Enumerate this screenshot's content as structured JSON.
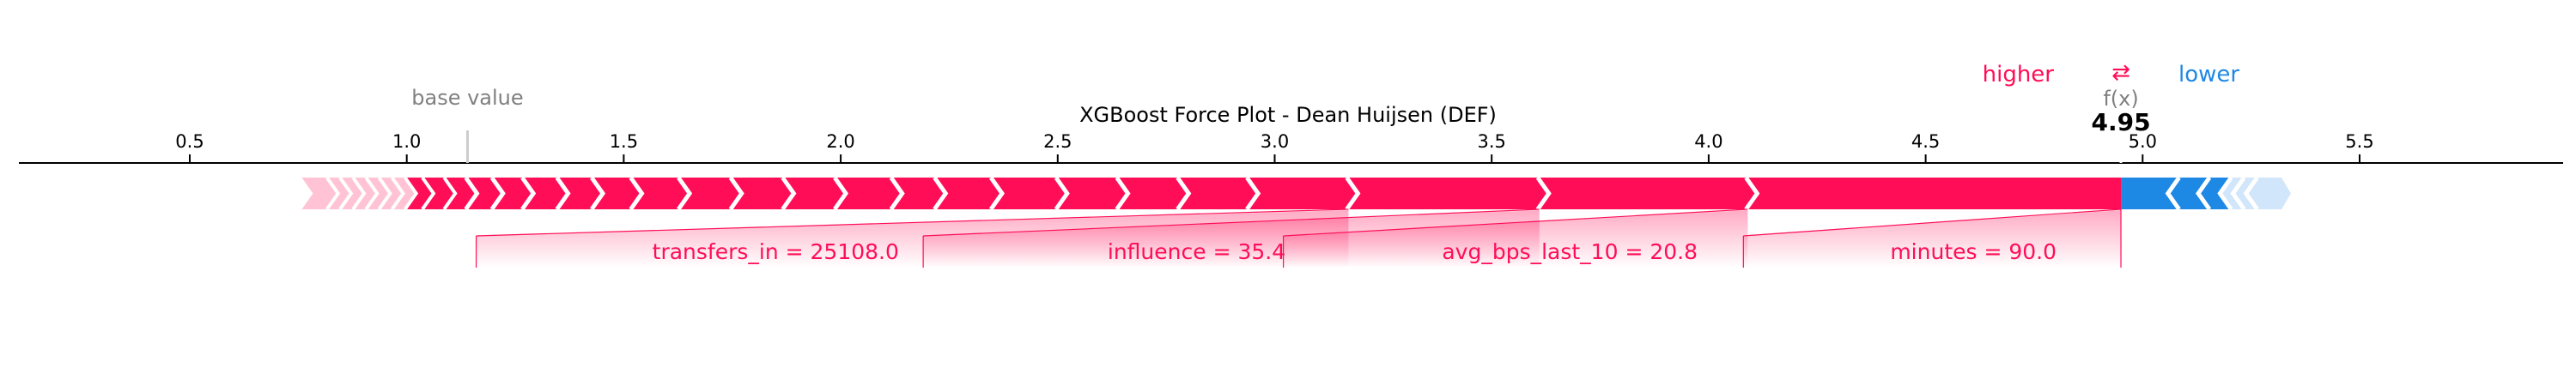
{
  "chart_data": {
    "type": "force",
    "title": "XGBoost Force Plot - Dean Huijsen (DEF)",
    "base_value_label": "base value",
    "fx_label": "f(x)",
    "higher_label": "higher",
    "lower_label": "lower",
    "swap_glyph": "⇄",
    "output_value": 4.95,
    "output_label": "4.95",
    "base_value": 1.14,
    "xlim": [
      0.1,
      6.0
    ],
    "ticks": [
      {
        "value": 0.5,
        "label": "0.5"
      },
      {
        "value": 1.0,
        "label": "1.0"
      },
      {
        "value": 1.5,
        "label": "1.5"
      },
      {
        "value": 2.0,
        "label": "2.0"
      },
      {
        "value": 2.5,
        "label": "2.5"
      },
      {
        "value": 3.0,
        "label": "3.0"
      },
      {
        "value": 3.5,
        "label": "3.5"
      },
      {
        "value": 4.0,
        "label": "4.0"
      },
      {
        "value": 4.5,
        "label": "4.5"
      },
      {
        "value": 5.0,
        "label": "5.0"
      },
      {
        "value": 5.5,
        "label": "5.5"
      }
    ],
    "positive_segment_bounds": [
      0.77,
      0.82,
      0.85,
      0.88,
      0.91,
      0.94,
      0.97,
      1.0,
      1.04,
      1.09,
      1.14,
      1.2,
      1.27,
      1.35,
      1.43,
      1.52,
      1.63,
      1.75,
      1.87,
      1.99,
      2.12,
      2.22,
      2.35,
      2.5,
      2.64,
      2.78,
      2.94,
      3.17,
      3.61,
      4.09,
      4.95
    ],
    "negative_segment_bounds": [
      4.95,
      5.08,
      5.15,
      5.2,
      5.23,
      5.26,
      5.32
    ],
    "labeled_features": [
      {
        "label": "transfers_in = 25108.0",
        "start": 1.16,
        "end": 3.17
      },
      {
        "label": "influence = 35.4",
        "start": 2.19,
        "end": 3.61
      },
      {
        "label": "avg_bps_last_10 = 20.8",
        "start": 3.02,
        "end": 4.09
      },
      {
        "label": "minutes = 90.0",
        "start": 4.08,
        "end": 4.95
      }
    ],
    "colors": {
      "positive": "#ff0d57",
      "negative": "#1e88e5",
      "positive_light": "#ffc3d5",
      "negative_light": "#d1e6fa",
      "text": "#000000",
      "muted": "#808080"
    }
  }
}
